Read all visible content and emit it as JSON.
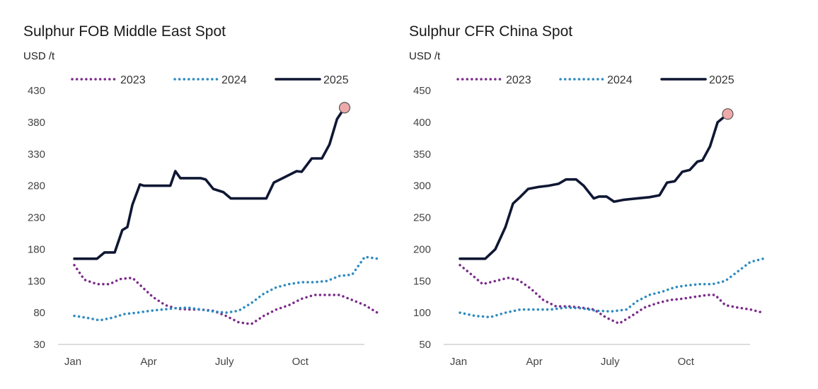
{
  "chart_data": [
    {
      "type": "line",
      "title": "Sulphur FOB Middle East Spot",
      "unit": "USD /t",
      "ylim": [
        30,
        430
      ],
      "yticks": [
        "430",
        "380",
        "330",
        "280",
        "230",
        "180",
        "130",
        "80",
        "30"
      ],
      "xticks": [
        "Jan",
        "Apr",
        "July",
        "Oct"
      ],
      "x_unit": "month",
      "x_range": [
        0,
        12
      ],
      "legend": "top",
      "grid": false,
      "series": [
        {
          "name": "2023",
          "style": "dotted",
          "color": "#7b2b8a",
          "x": [
            0,
            0.4,
            0.9,
            1.4,
            1.8,
            2.3,
            2.7,
            3.1,
            3.6,
            4.1,
            4.6,
            5.0,
            5.5,
            6.0,
            6.5,
            7.0,
            7.5,
            8.0,
            8.5,
            9.0,
            9.5,
            10.0,
            10.5,
            11.0,
            11.5,
            12.0
          ],
          "y": [
            155,
            132,
            125,
            125,
            133,
            135,
            120,
            105,
            92,
            86,
            85,
            85,
            83,
            75,
            65,
            62,
            75,
            85,
            92,
            102,
            108,
            108,
            108,
            100,
            92,
            80
          ]
        },
        {
          "name": "2024",
          "style": "dotted",
          "color": "#2e8bc0",
          "x": [
            0,
            0.5,
            1.0,
            1.5,
            2.0,
            2.5,
            3.0,
            3.5,
            4.0,
            4.5,
            5.0,
            5.5,
            6.0,
            6.5,
            7.0,
            7.5,
            8.0,
            8.5,
            9.0,
            9.5,
            10.0,
            10.5,
            11.0,
            11.5,
            12.0
          ],
          "y": [
            75,
            72,
            68,
            72,
            78,
            80,
            83,
            85,
            87,
            88,
            85,
            82,
            80,
            83,
            95,
            110,
            120,
            125,
            128,
            128,
            130,
            138,
            140,
            168,
            165
          ]
        },
        {
          "name": "2025",
          "style": "solid",
          "color": "#0f1733",
          "x": [
            0,
            0.9,
            1.2,
            1.6,
            1.9,
            2.1,
            2.3,
            2.6,
            2.75,
            3.0,
            3.5,
            3.8,
            4.0,
            4.2,
            4.5,
            5.0,
            5.2,
            5.5,
            5.9,
            6.2,
            6.8,
            7.3,
            7.6,
            7.9,
            8.3,
            8.8,
            9.0,
            9.4,
            9.8,
            10.1,
            10.4,
            10.7
          ],
          "y": [
            165,
            165,
            175,
            175,
            210,
            215,
            250,
            282,
            280,
            280,
            280,
            280,
            303,
            292,
            292,
            292,
            290,
            275,
            270,
            260,
            260,
            260,
            260,
            285,
            293,
            303,
            302,
            323,
            323,
            345,
            385,
            403
          ]
        }
      ]
    },
    {
      "type": "line",
      "title": "Sulphur CFR China Spot",
      "unit": "USD /t",
      "ylim": [
        50,
        450
      ],
      "yticks": [
        "450",
        "400",
        "350",
        "300",
        "250",
        "200",
        "150",
        "100",
        "50"
      ],
      "xticks": [
        "Jan",
        "Apr",
        "July",
        "Oct"
      ],
      "x_unit": "month",
      "x_range": [
        0,
        12
      ],
      "legend": "top",
      "grid": false,
      "series": [
        {
          "name": "2023",
          "style": "dotted",
          "color": "#7b2b8a",
          "x": [
            0,
            0.4,
            0.9,
            1.4,
            1.9,
            2.3,
            2.8,
            3.3,
            3.8,
            4.3,
            4.8,
            5.3,
            5.8,
            6.3,
            6.8,
            7.3,
            7.8,
            8.3,
            8.8,
            9.3,
            9.8,
            10.1,
            10.5,
            11.0,
            11.5,
            12.0
          ],
          "y": [
            175,
            162,
            145,
            150,
            155,
            152,
            138,
            120,
            110,
            110,
            108,
            105,
            92,
            83,
            95,
            108,
            115,
            120,
            122,
            125,
            128,
            128,
            112,
            108,
            105,
            100
          ]
        },
        {
          "name": "2024",
          "style": "dotted",
          "color": "#2e8bc0",
          "x": [
            0,
            0.6,
            1.2,
            1.8,
            2.4,
            3.0,
            3.6,
            4.2,
            4.8,
            5.4,
            6.0,
            6.6,
            7.0,
            7.5,
            8.0,
            8.5,
            9.0,
            9.5,
            10.0,
            10.5,
            11.0,
            11.5,
            12.0
          ],
          "y": [
            100,
            95,
            93,
            100,
            105,
            105,
            105,
            108,
            107,
            103,
            102,
            105,
            118,
            128,
            133,
            140,
            143,
            145,
            145,
            150,
            165,
            180,
            185
          ]
        },
        {
          "name": "2025",
          "style": "solid",
          "color": "#0f1733",
          "x": [
            0,
            1.0,
            1.4,
            1.8,
            2.1,
            2.4,
            2.7,
            3.1,
            3.5,
            3.9,
            4.2,
            4.6,
            4.9,
            5.3,
            5.5,
            5.8,
            6.1,
            6.5,
            7.0,
            7.5,
            7.9,
            8.2,
            8.5,
            8.8,
            9.1,
            9.4,
            9.6,
            9.9,
            10.2,
            10.6
          ],
          "y": [
            185,
            185,
            200,
            235,
            272,
            283,
            295,
            298,
            300,
            303,
            310,
            310,
            300,
            280,
            283,
            283,
            275,
            278,
            280,
            282,
            285,
            305,
            307,
            322,
            325,
            338,
            340,
            362,
            400,
            413
          ]
        }
      ]
    }
  ]
}
